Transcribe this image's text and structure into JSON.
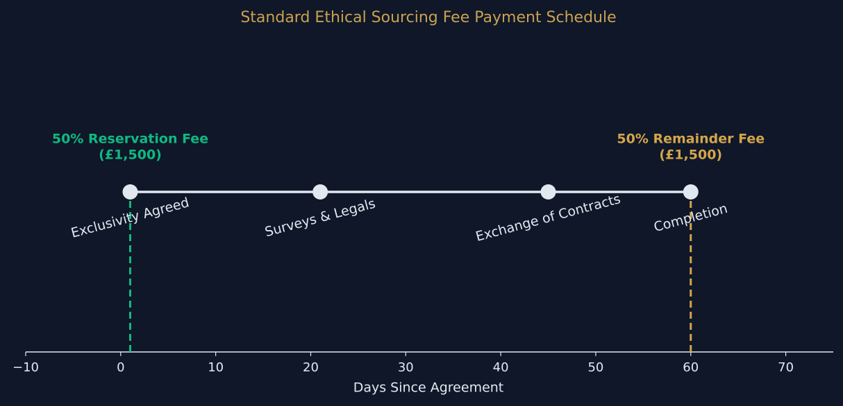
{
  "chart_data": {
    "type": "timeline",
    "title": "Standard Ethical Sourcing Fee Payment Schedule",
    "xlabel": "Days Since Agreement",
    "x": [
      1,
      21,
      45,
      60
    ],
    "categories": [
      "Exclusivity Agreed",
      "Surveys & Legals",
      "Exchange of Contracts",
      "Completion"
    ],
    "values": [
      1,
      1,
      1,
      1
    ],
    "color": "#e2e8f0",
    "xlim": [
      -10,
      75
    ],
    "ylim": [
      0,
      2
    ],
    "xticks": [
      {
        "value": -10,
        "label": "−10"
      },
      0,
      10,
      20,
      30,
      40,
      50,
      60,
      70
    ],
    "annotations": [
      {
        "lines": [
          "50% Reservation Fee",
          "(£1,500)"
        ],
        "x": 1,
        "color": "#10b981"
      },
      {
        "lines": [
          "50% Remainder Fee",
          "(£1,500)"
        ],
        "x": 60,
        "color": "#d4a64a"
      }
    ]
  }
}
